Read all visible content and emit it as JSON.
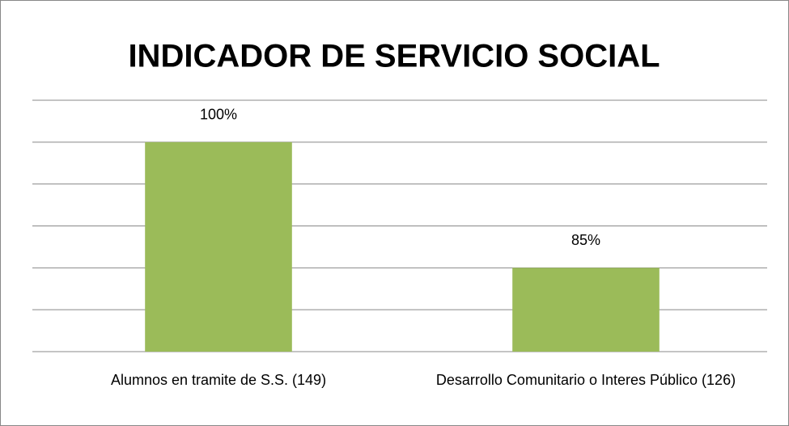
{
  "chart_data": {
    "type": "bar",
    "title": "INDICADOR DE SERVICIO SOCIAL",
    "categories": [
      "Alumnos en tramite de S.S. (149)",
      "Desarrollo Comunitario o Interes Público (126)"
    ],
    "values": [
      100,
      85
    ],
    "value_labels": [
      "100%",
      "85%"
    ],
    "color": "#9bbb59",
    "ylim": [
      75,
      105
    ],
    "yticks": [
      75,
      80,
      85,
      90,
      95,
      100,
      105
    ],
    "grid": true
  }
}
